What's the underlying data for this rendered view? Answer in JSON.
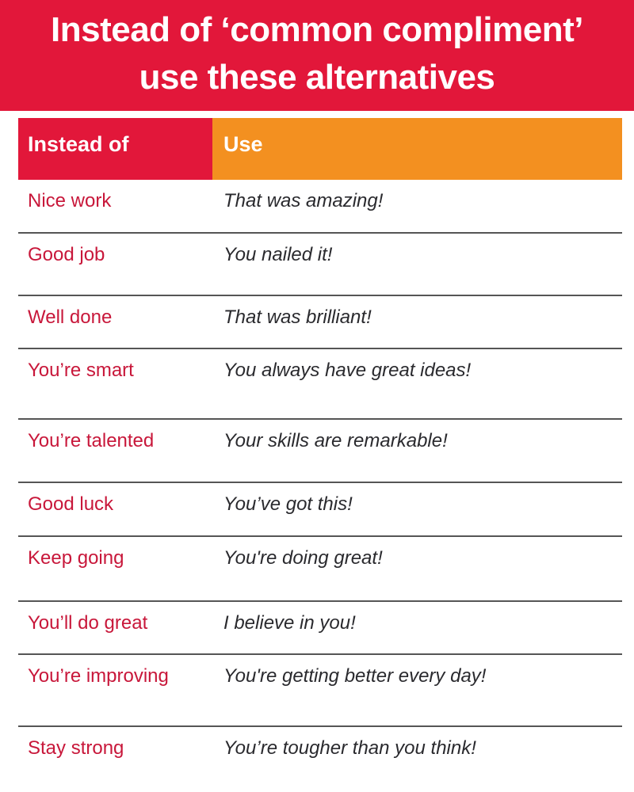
{
  "title": {
    "line1": "Instead of ‘common compliment’",
    "line2": "use these alternatives"
  },
  "colors": {
    "red": "#e2173a",
    "orange": "#f39020",
    "text_red": "#c8173a",
    "text_dark": "#2a2a2e"
  },
  "table": {
    "headers": [
      "Instead of",
      "Use"
    ],
    "rows": [
      {
        "instead": "Nice work",
        "use": "That was amazing!"
      },
      {
        "instead": "Good job",
        "use": "You nailed it!"
      },
      {
        "instead": "Well done",
        "use": "That was brilliant!"
      },
      {
        "instead": "You’re smart",
        "use": "You always have great ideas!"
      },
      {
        "instead": "You’re talented",
        "use": "Your skills are remarkable!"
      },
      {
        "instead": "Good luck",
        "use": "You’ve got this!"
      },
      {
        "instead": "Keep going",
        "use": "You're doing great!"
      },
      {
        "instead": "You’ll do great",
        "use": "I believe in you!"
      },
      {
        "instead": "You’re improving",
        "use": "You're getting better every day!"
      },
      {
        "instead": "Stay strong",
        "use": "You’re tougher than you think!"
      }
    ]
  }
}
